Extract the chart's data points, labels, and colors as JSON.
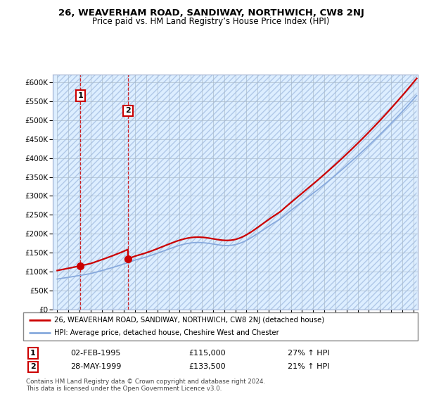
{
  "title": "26, WEAVERHAM ROAD, SANDIWAY, NORTHWICH, CW8 2NJ",
  "subtitle": "Price paid vs. HM Land Registry’s House Price Index (HPI)",
  "ylim": [
    0,
    620000
  ],
  "yticks": [
    0,
    50000,
    100000,
    150000,
    200000,
    250000,
    300000,
    350000,
    400000,
    450000,
    500000,
    550000,
    600000
  ],
  "ytick_labels": [
    "£0",
    "£50K",
    "£100K",
    "£150K",
    "£200K",
    "£250K",
    "£300K",
    "£350K",
    "£400K",
    "£450K",
    "£500K",
    "£550K",
    "£600K"
  ],
  "sale1_price": 115000,
  "sale1_year": 1995.08,
  "sale1_hpi_pct": "27% ↑ HPI",
  "sale1_date_str": "02-FEB-1995",
  "sale2_price": 133500,
  "sale2_year": 1999.37,
  "sale2_hpi_pct": "21% ↑ HPI",
  "sale2_date_str": "28-MAY-1999",
  "legend_line1": "26, WEAVERHAM ROAD, SANDIWAY, NORTHWICH, CW8 2NJ (detached house)",
  "legend_line2": "HPI: Average price, detached house, Cheshire West and Chester",
  "footnote": "Contains HM Land Registry data © Crown copyright and database right 2024.\nThis data is licensed under the Open Government Licence v3.0.",
  "price_line_color": "#cc0000",
  "hpi_line_color": "#88aadd",
  "bg_hatch_color": "#c8d8ee",
  "bg_base_color": "#ddeeff",
  "xlim_left": 1992.6,
  "xlim_right": 2025.4,
  "xtick_start": 1993,
  "xtick_end": 2025
}
